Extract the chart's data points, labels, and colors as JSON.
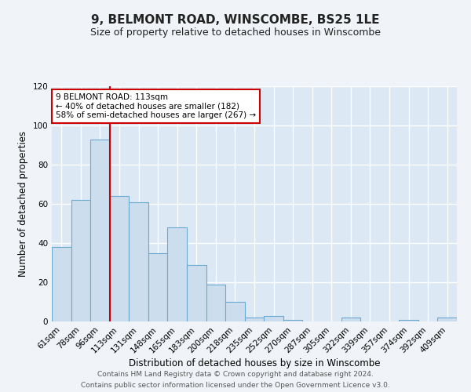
{
  "title": "9, BELMONT ROAD, WINSCOMBE, BS25 1LE",
  "subtitle": "Size of property relative to detached houses in Winscombe",
  "xlabel": "Distribution of detached houses by size in Winscombe",
  "ylabel": "Number of detached properties",
  "bar_labels": [
    "61sqm",
    "78sqm",
    "96sqm",
    "113sqm",
    "131sqm",
    "148sqm",
    "165sqm",
    "183sqm",
    "200sqm",
    "218sqm",
    "235sqm",
    "252sqm",
    "270sqm",
    "287sqm",
    "305sqm",
    "322sqm",
    "339sqm",
    "357sqm",
    "374sqm",
    "392sqm",
    "409sqm"
  ],
  "bar_values": [
    38,
    62,
    93,
    64,
    61,
    35,
    48,
    29,
    19,
    10,
    2,
    3,
    1,
    0,
    0,
    2,
    0,
    0,
    1,
    0,
    2
  ],
  "bar_color": "#ccdded",
  "bar_edgecolor": "#6aaad0",
  "vline_x": 2.5,
  "vline_color": "#cc0000",
  "ylim": [
    0,
    120
  ],
  "yticks": [
    0,
    20,
    40,
    60,
    80,
    100,
    120
  ],
  "annotation_title": "9 BELMONT ROAD: 113sqm",
  "annotation_line1": "← 40% of detached houses are smaller (182)",
  "annotation_line2": "58% of semi-detached houses are larger (267) →",
  "annotation_box_edgecolor": "#cc0000",
  "footer1": "Contains HM Land Registry data © Crown copyright and database right 2024.",
  "footer2": "Contains public sector information licensed under the Open Government Licence v3.0.",
  "bg_color": "#f0f4f8",
  "plot_bg_color": "#dce8f4",
  "grid_color": "#ffffff",
  "title_fontsize": 11,
  "subtitle_fontsize": 9,
  "xlabel_fontsize": 8.5,
  "ylabel_fontsize": 8.5,
  "tick_fontsize": 7.5,
  "footer_fontsize": 6.5
}
